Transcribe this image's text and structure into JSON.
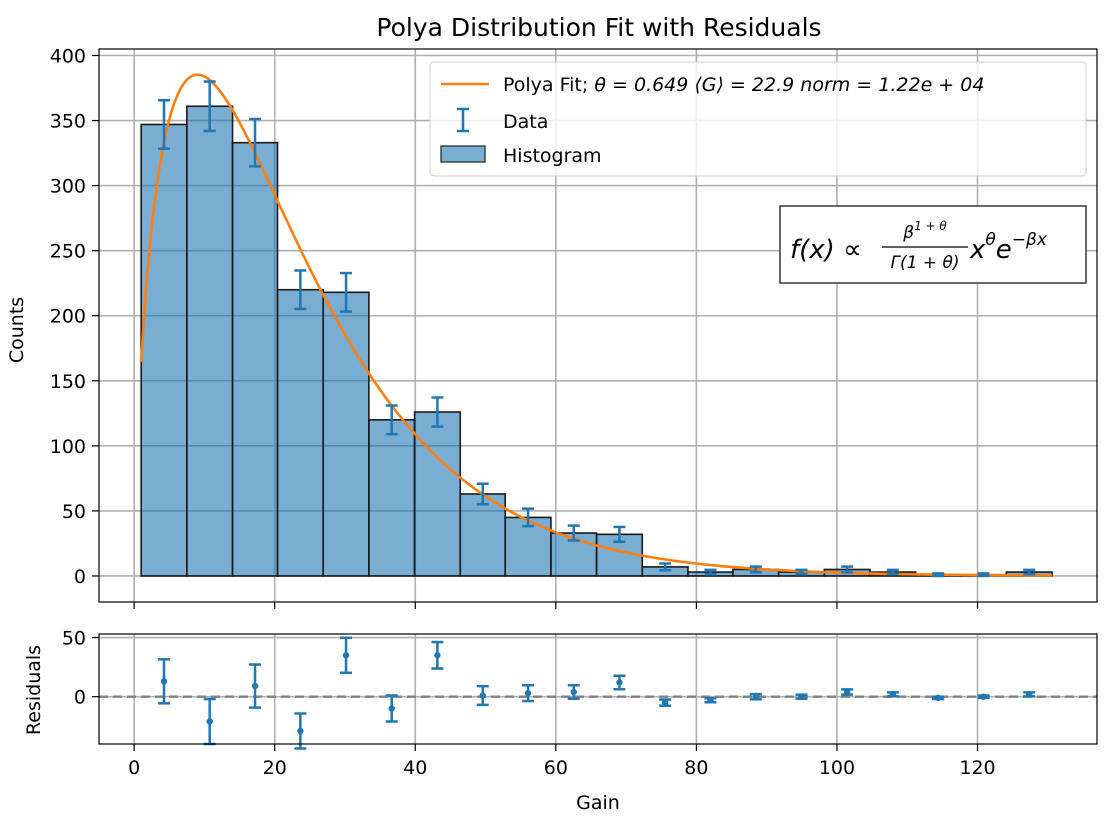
{
  "chart_data": [
    {
      "type": "bar",
      "title": "Polya Distribution Fit with Residuals",
      "xlabel": "",
      "ylabel": "Counts",
      "xlim": [
        -5,
        137
      ],
      "ylim": [
        -20,
        405
      ],
      "yticks": [
        0,
        50,
        100,
        150,
        200,
        250,
        300,
        350,
        400
      ],
      "xticks": [
        0,
        20,
        40,
        60,
        80,
        100,
        120
      ],
      "grid": true,
      "legend_position": "top-right",
      "bin_edges": [
        1.0,
        7.5,
        14.0,
        20.4,
        26.9,
        33.4,
        39.9,
        46.4,
        52.8,
        59.3,
        65.8,
        72.3,
        78.8,
        85.2,
        91.7,
        98.2,
        104.7,
        111.2,
        117.6,
        124.1,
        130.6
      ],
      "series": [
        {
          "name": "Histogram",
          "type": "bar",
          "color": "#1f77b4",
          "values": [
            347,
            361,
            333,
            220,
            218,
            120,
            126,
            63,
            45,
            33,
            32,
            7,
            3,
            5,
            3,
            5,
            3,
            1,
            1,
            3
          ]
        },
        {
          "name": "Data",
          "type": "errorbar",
          "color": "#1f77b4",
          "x": [
            4.25,
            10.75,
            17.2,
            23.65,
            30.15,
            36.65,
            43.15,
            49.6,
            56.05,
            62.55,
            69.05,
            75.55,
            82.0,
            88.45,
            94.95,
            101.45,
            107.95,
            114.4,
            120.85,
            127.35
          ],
          "y": [
            347,
            361,
            333,
            220,
            218,
            120,
            126,
            63,
            45,
            33,
            32,
            7,
            3,
            5,
            3,
            5,
            3,
            1,
            1,
            3
          ],
          "yerr": [
            18.6,
            19.0,
            18.2,
            14.8,
            14.8,
            11.0,
            11.2,
            7.9,
            6.7,
            5.7,
            5.7,
            2.6,
            1.7,
            2.2,
            1.7,
            2.2,
            1.7,
            1.0,
            1.0,
            1.7
          ]
        },
        {
          "name": "Polya Fit; θ = 0.649  ⟨G⟩ = 22.9 norm = 1.22e + 04",
          "type": "line",
          "color": "#ff7f0e",
          "theta": 0.649,
          "mean_gain": 22.9,
          "norm": 12200,
          "x_range": [
            1.0,
            130.6
          ]
        }
      ],
      "legend_entries": {
        "fit_prefix": "Polya Fit; ",
        "fit_params": "θ = 0.649  ⟨G⟩ = 22.9 norm = 1.22e + 04",
        "data": "Data",
        "histogram": "Histogram"
      },
      "annotation": {
        "lhs": "f(x) ∝ ",
        "numerator": "β",
        "numerator_sup": "1 + θ",
        "denominator": "Γ(1 + θ)",
        "rhs_x": "x",
        "rhs_x_sup": "θ",
        "rhs_e": "e",
        "rhs_e_sup": "−βx"
      }
    },
    {
      "type": "scatter",
      "title": "",
      "xlabel": "Gain",
      "ylabel": "Residuals",
      "xlim": [
        -5,
        137
      ],
      "ylim": [
        -40,
        53
      ],
      "yticks": [
        0,
        50
      ],
      "xticks": [
        0,
        20,
        40,
        60,
        80,
        100,
        120
      ],
      "grid": true,
      "reference_line": 0,
      "series": [
        {
          "name": "",
          "color": "#1f77b4",
          "x": [
            4.25,
            10.75,
            17.2,
            23.65,
            30.15,
            36.65,
            43.15,
            49.6,
            56.05,
            62.55,
            69.05,
            75.55,
            82.0,
            88.45,
            94.95,
            101.45,
            107.95,
            114.4,
            120.85,
            127.35
          ],
          "y": [
            13,
            -21,
            9,
            -29,
            35,
            -10,
            35,
            1,
            3,
            4,
            12,
            -5,
            -3,
            0,
            0,
            4,
            2,
            -1,
            0,
            2
          ],
          "yerr": [
            18.6,
            19.0,
            18.2,
            14.8,
            14.8,
            11.0,
            11.2,
            7.9,
            6.7,
            5.7,
            5.7,
            2.6,
            1.7,
            2.2,
            1.7,
            2.2,
            1.7,
            1.0,
            1.0,
            1.7
          ]
        }
      ]
    }
  ]
}
